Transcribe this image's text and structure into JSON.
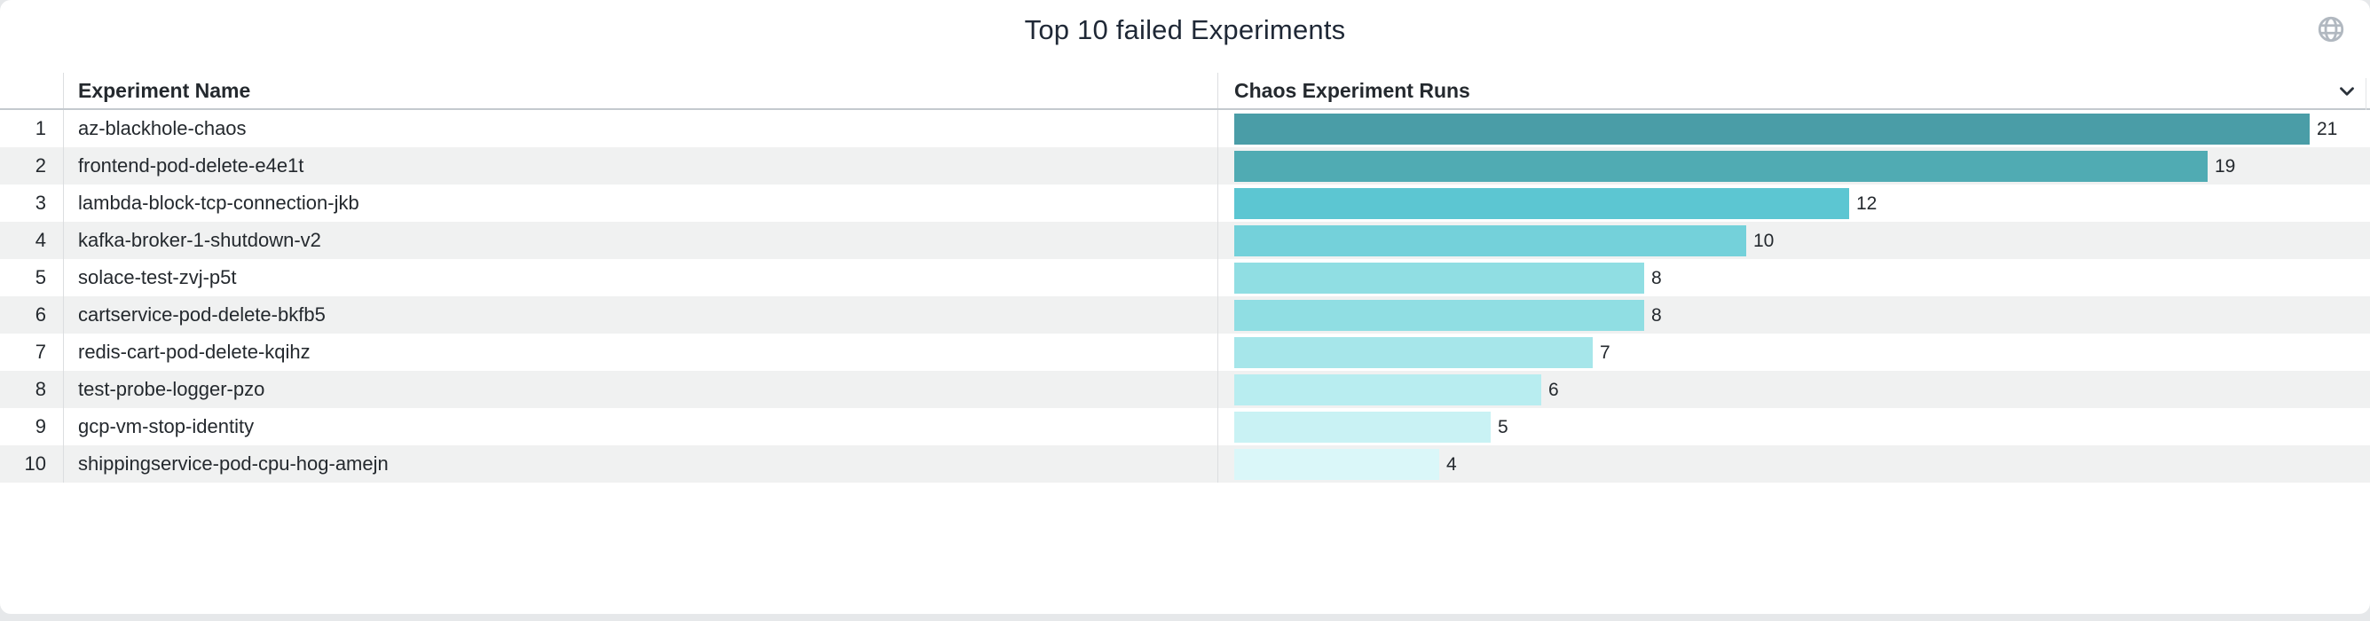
{
  "panel": {
    "title": "Top 10 failed Experiments",
    "background": "#ffffff",
    "page_background": "#e6e8ea"
  },
  "icons": {
    "top_right": "globe-icon",
    "bar_column_header": "chevron-down-icon",
    "globe_color": "#b1b8c0",
    "chevron_color": "#2b323b"
  },
  "table": {
    "columns": [
      {
        "label": "Experiment Name"
      },
      {
        "label": "Chaos Experiment Runs"
      }
    ],
    "rows": [
      {
        "rank": "1",
        "name": "az-blackhole-chaos",
        "value": 21,
        "bar_color": "#4a9da7"
      },
      {
        "rank": "2",
        "name": "frontend-pod-delete-e4e1t",
        "value": 19,
        "bar_color": "#50abb3"
      },
      {
        "rank": "3",
        "name": "lambda-block-tcp-connection-jkb",
        "value": 12,
        "bar_color": "#5cc6d2"
      },
      {
        "rank": "4",
        "name": "kafka-broker-1-shutdown-v2",
        "value": 10,
        "bar_color": "#74d1da"
      },
      {
        "rank": "5",
        "name": "solace-test-zvj-p5t",
        "value": 8,
        "bar_color": "#90dee3"
      },
      {
        "rank": "6",
        "name": "cartservice-pod-delete-bkfb5",
        "value": 8,
        "bar_color": "#90dee3"
      },
      {
        "rank": "7",
        "name": "redis-cart-pod-delete-kqihz",
        "value": 7,
        "bar_color": "#a6e6ea"
      },
      {
        "rank": "8",
        "name": "test-probe-logger-pzo",
        "value": 6,
        "bar_color": "#b8edf0"
      },
      {
        "rank": "9",
        "name": "gcp-vm-stop-identity",
        "value": 5,
        "bar_color": "#c9f2f4"
      },
      {
        "rank": "10",
        "name": "shippingservice-pod-cpu-hog-amejn",
        "value": 4,
        "bar_color": "#daf7f9"
      }
    ],
    "stripe_color": "#f0f1f1",
    "divider_color": "#dcdee0",
    "header_border_color": "#c4c9ce",
    "text_color": "#24292e"
  },
  "chart_data": {
    "type": "bar",
    "orientation": "horizontal",
    "title": "Top 10 failed Experiments",
    "categories": [
      "az-blackhole-chaos",
      "frontend-pod-delete-e4e1t",
      "lambda-block-tcp-connection-jkb",
      "kafka-broker-1-shutdown-v2",
      "solace-test-zvj-p5t",
      "cartservice-pod-delete-bkfb5",
      "redis-cart-pod-delete-kqihz",
      "test-probe-logger-pzo",
      "gcp-vm-stop-identity",
      "shippingservice-pod-cpu-hog-amejn"
    ],
    "values": [
      21,
      19,
      12,
      10,
      8,
      8,
      7,
      6,
      5,
      4
    ],
    "series_name": "Chaos Experiment Runs",
    "xlabel": "",
    "ylabel": "Experiment Name",
    "xlim": [
      0,
      21
    ],
    "value_labels": true,
    "grid": false,
    "legend": "none",
    "color_scale": {
      "low": "#daf7f9",
      "high": "#4a9da7",
      "mapped_by": "value"
    }
  }
}
